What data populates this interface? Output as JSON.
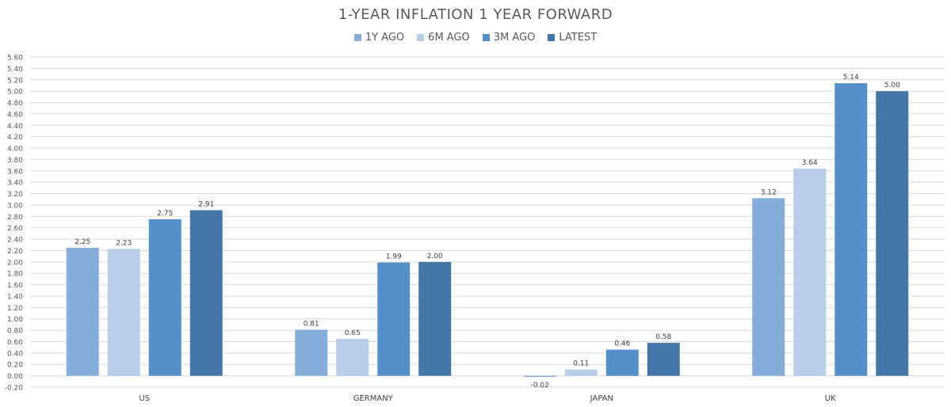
{
  "chart_data": {
    "type": "bar",
    "title": "1-YEAR INFLATION 1 YEAR FORWARD",
    "categories": [
      "US",
      "GERMANY",
      "JAPAN",
      "UK"
    ],
    "series": [
      {
        "name": "1Y AGO",
        "color": "#86AEDB",
        "values": [
          2.25,
          0.81,
          -0.02,
          3.12
        ]
      },
      {
        "name": "6M AGO",
        "color": "#B8CDE8",
        "values": [
          2.23,
          0.65,
          0.11,
          3.64
        ]
      },
      {
        "name": "3M AGO",
        "color": "#5590C8",
        "values": [
          2.75,
          1.99,
          0.46,
          5.14
        ]
      },
      {
        "name": "LATEST",
        "color": "#4477A8",
        "values": [
          2.91,
          2.0,
          0.58,
          5.0
        ]
      }
    ],
    "ylim": [
      -0.2,
      5.6
    ],
    "ytick_step": 0.2,
    "grid": true,
    "legend_position": "top-center",
    "xlabel": "",
    "ylabel": ""
  }
}
